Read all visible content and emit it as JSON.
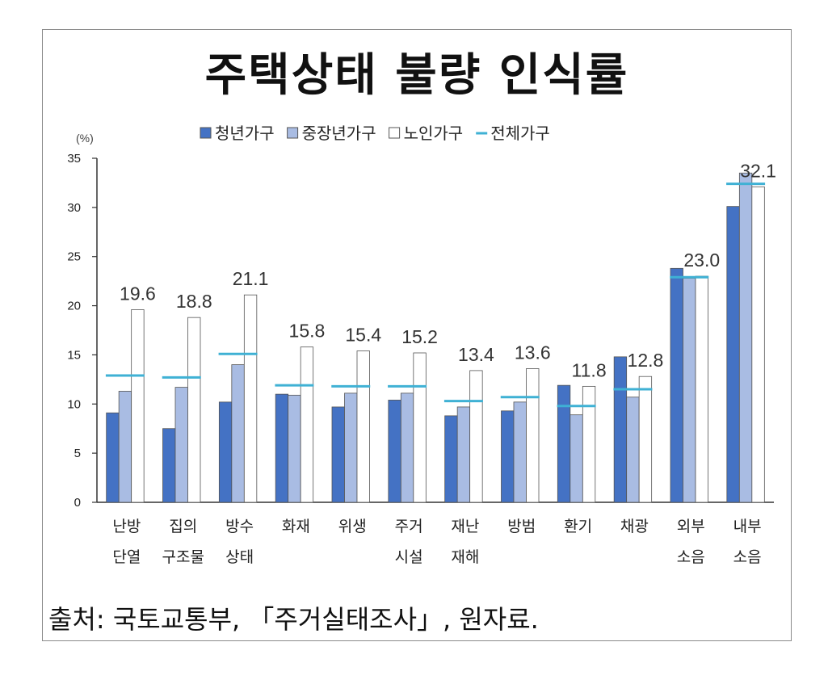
{
  "title": "주택상태 불량 인식률",
  "source": "출처: 국토교통부, 「주거실태조사」, 원자료.",
  "chart_data": {
    "type": "bar",
    "unit": "(%)",
    "ylim": [
      0,
      35
    ],
    "yticks": [
      0,
      5,
      10,
      15,
      20,
      25,
      30,
      35
    ],
    "categories": [
      [
        "난방",
        "단열"
      ],
      [
        "집의",
        "구조물"
      ],
      [
        "방수",
        "상태"
      ],
      [
        "화재"
      ],
      [
        "위생"
      ],
      [
        "주거",
        "시설"
      ],
      [
        "재난",
        "재해"
      ],
      [
        "방범"
      ],
      [
        "환기"
      ],
      [
        "채광"
      ],
      [
        "외부",
        "소음"
      ],
      [
        "내부",
        "소음"
      ]
    ],
    "series": [
      {
        "name": "청년가구",
        "color": "#4472c4",
        "values": [
          9.1,
          7.5,
          10.2,
          11.0,
          9.7,
          10.4,
          8.8,
          9.3,
          11.9,
          14.8,
          23.8,
          30.1
        ]
      },
      {
        "name": "중장년가구",
        "color": "#a9bce3",
        "values": [
          11.3,
          11.7,
          14.0,
          10.9,
          11.1,
          11.1,
          9.7,
          10.2,
          8.9,
          10.7,
          22.8,
          33.5
        ]
      },
      {
        "name": "노인가구",
        "color": "#ffffff",
        "values": [
          19.6,
          18.8,
          21.1,
          15.8,
          15.4,
          15.2,
          13.4,
          13.6,
          11.8,
          12.8,
          23.0,
          32.1
        ]
      },
      {
        "name": "전체가구",
        "color": "#3fb1d4",
        "values": [
          12.9,
          12.7,
          15.1,
          11.9,
          11.8,
          11.8,
          10.3,
          10.7,
          9.8,
          11.5,
          22.9,
          32.4
        ]
      }
    ],
    "data_labels": [
      "19.6",
      "18.8",
      "21.1",
      "15.8",
      "15.4",
      "15.2",
      "13.4",
      "13.6",
      "11.8",
      "12.8",
      "23.0",
      "32.1"
    ],
    "legend_position": "top"
  }
}
